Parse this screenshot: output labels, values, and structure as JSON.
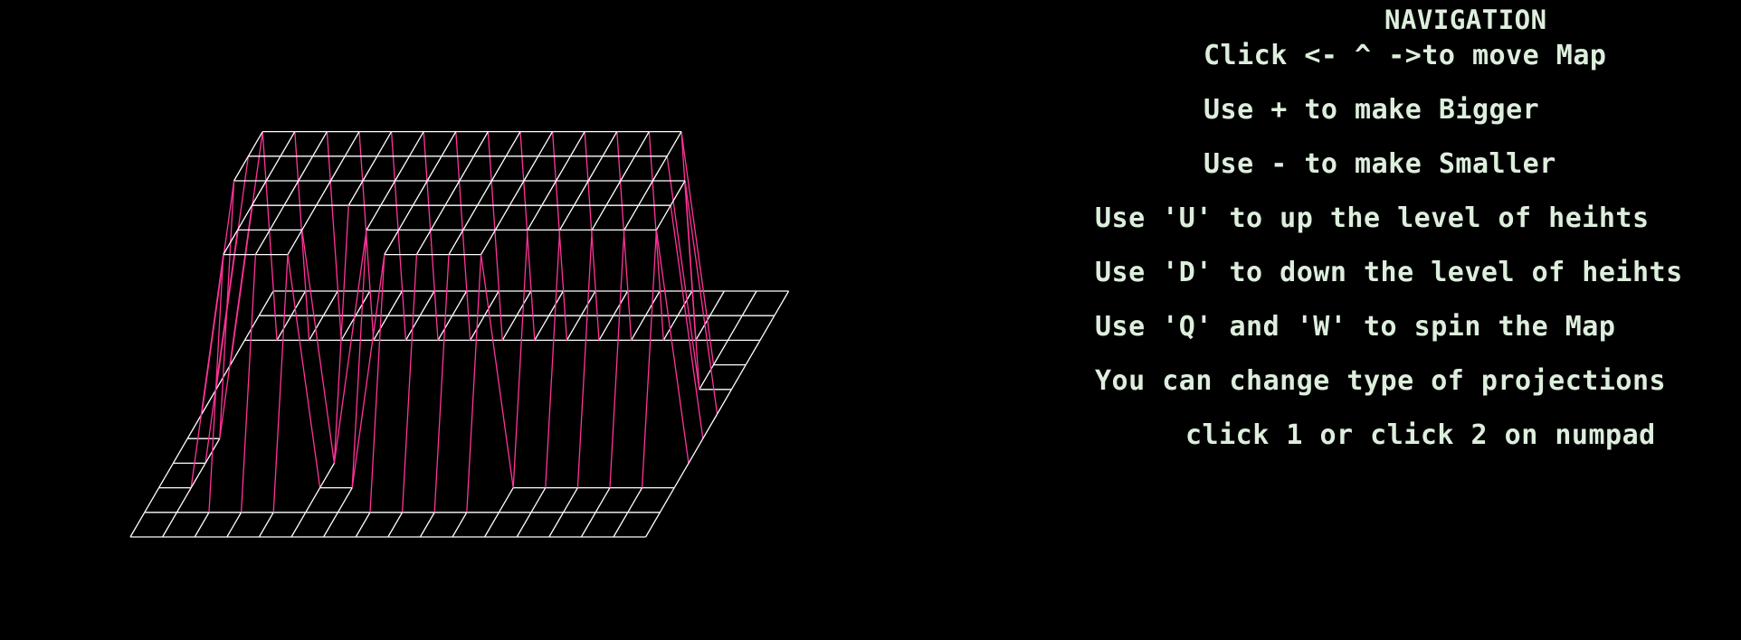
{
  "map": {
    "grid_cols": 16,
    "grid_rows": 10,
    "heights": [
      [
        0,
        0,
        0,
        0,
        0,
        0,
        0,
        0,
        0,
        0,
        0,
        0,
        0,
        0,
        0,
        0
      ],
      [
        0,
        0,
        0,
        0,
        0,
        0,
        0,
        0,
        0,
        0,
        0,
        0,
        0,
        0,
        0,
        0
      ],
      [
        0,
        0,
        1,
        1,
        0,
        0,
        0,
        1,
        1,
        1,
        0,
        0,
        0,
        0,
        0,
        0
      ],
      [
        0,
        0,
        1,
        1,
        0,
        0,
        1,
        1,
        0,
        0,
        0,
        1,
        1,
        1,
        1,
        0
      ],
      [
        0,
        0,
        1,
        1,
        0,
        1,
        1,
        0,
        0,
        1,
        1,
        1,
        1,
        1,
        1,
        0
      ],
      [
        0,
        1,
        1,
        1,
        1,
        1,
        0,
        0,
        1,
        1,
        0,
        0,
        1,
        1,
        0,
        0
      ],
      [
        0,
        1,
        1,
        0,
        1,
        1,
        1,
        0,
        1,
        1,
        1,
        0,
        1,
        1,
        0,
        0
      ],
      [
        0,
        0,
        0,
        0,
        0,
        0,
        0,
        0,
        0,
        0,
        0,
        0,
        0,
        0,
        0,
        0
      ],
      [
        0,
        0,
        0,
        0,
        0,
        0,
        0,
        0,
        0,
        0,
        0,
        0,
        0,
        0,
        0,
        0
      ],
      [
        0,
        0,
        0,
        0,
        0,
        0,
        0,
        0,
        0,
        0,
        0,
        0,
        0,
        0,
        0,
        0
      ]
    ],
    "colors": {
      "background": "#000000",
      "flat_lines": "#ffffff",
      "raised_lines": "#ff3399",
      "text": "#ddeedd"
    }
  },
  "navigation": {
    "title": "NAVIGATION",
    "lines": [
      "Click <- ^ ->to move Map",
      "Use + to make Bigger",
      "Use - to make Smaller",
      "Use 'U' to up the level of heihts",
      "Use 'D' to down the level of heihts",
      "Use 'Q' and 'W' to spin the Map",
      "You can change type of projections",
      "click 1 or click 2 on numpad"
    ]
  }
}
